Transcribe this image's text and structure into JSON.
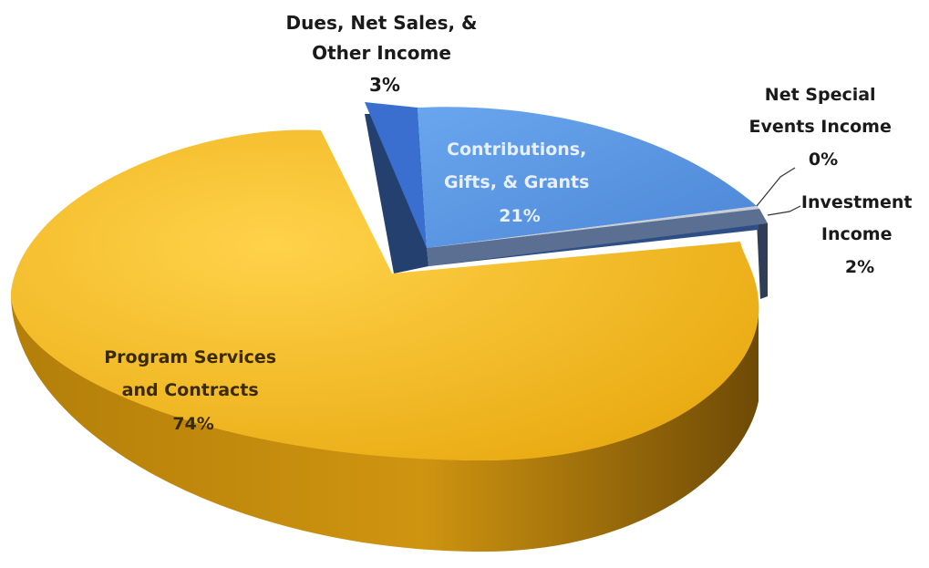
{
  "chart_data": {
    "type": "pie",
    "title": "",
    "slices": [
      {
        "lines": [
          "Dues, Net Sales, &",
          "Other Income",
          "3%"
        ],
        "value": 3,
        "color": "#3a6fcf"
      },
      {
        "lines": [
          "Contributions,",
          "Gifts, & Grants",
          "21%"
        ],
        "value": 21,
        "color": "#5b97e2"
      },
      {
        "lines": [
          "Net Special",
          "Events Income",
          "0%"
        ],
        "value": 0,
        "color": "#9aa3b0"
      },
      {
        "lines": [
          "Investment",
          "Income",
          "2%"
        ],
        "value": 2,
        "color": "#4b5e7e"
      },
      {
        "lines": [
          "Program Services",
          "and Contracts",
          "74%"
        ],
        "value": 74,
        "color": "#f0b318"
      }
    ]
  }
}
